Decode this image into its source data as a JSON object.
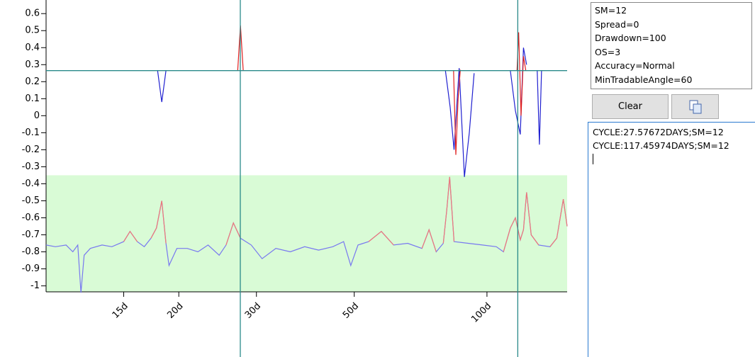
{
  "chart_data": {
    "type": "line",
    "xscale": "log",
    "xlim": [
      10,
      152
    ],
    "ylim": [
      -1.035,
      0.68
    ],
    "xticks": [
      {
        "value": 15,
        "label": "15d"
      },
      {
        "value": 20,
        "label": "20d"
      },
      {
        "value": 30,
        "label": "30d"
      },
      {
        "value": 50,
        "label": "50d"
      },
      {
        "value": 100,
        "label": "100d"
      }
    ],
    "yticks": [
      0.6,
      0.5,
      0.4,
      0.3,
      0.2,
      0.1,
      0,
      -0.1,
      -0.2,
      -0.3,
      -0.4,
      -0.5,
      -0.6,
      -0.7,
      -0.8,
      -0.9,
      -1
    ],
    "threshold": 0.265,
    "threshold_color": "#2a8a8a",
    "zone": {
      "from": -1.035,
      "to": -0.35,
      "color": "#d9fbd6"
    },
    "cycle_lines": [
      27.57672,
      117.45974
    ],
    "cycle_color": "#2a8a8a",
    "series": [
      {
        "color": "#7878f0",
        "x": [
          10.0,
          10.5,
          11.1,
          11.5,
          11.8,
          12.0,
          12.2,
          12.6,
          13.4,
          14.1,
          15.0,
          15.5,
          16.1,
          16.7,
          17.3,
          17.8,
          18.3,
          18.7,
          19.0,
          19.8,
          20.9,
          22.1,
          23.3,
          24.7,
          25.6,
          26.6,
          27.6,
          29.2,
          30.9,
          33.2,
          35.8,
          38.6,
          41.5,
          44.7,
          47.3,
          49.1,
          51.0,
          53.9,
          57.6,
          61.4,
          66.1,
          71.2,
          73.9,
          76.7,
          79.6,
          81.1,
          82.3,
          84.2,
          90.7,
          97.7,
          105,
          109,
          113,
          116,
          119,
          121,
          123,
          126,
          131,
          139,
          144,
          149,
          152
        ],
        "values": [
          -0.76,
          -0.77,
          -0.76,
          -0.8,
          -0.76,
          -1.04,
          -0.82,
          -0.78,
          -0.76,
          -0.77,
          -0.74,
          -0.68,
          -0.74,
          -0.77,
          -0.72,
          -0.66,
          -0.5,
          -0.75,
          -0.88,
          -0.78,
          -0.78,
          -0.8,
          -0.76,
          -0.82,
          -0.76,
          -0.63,
          -0.72,
          -0.76,
          -0.84,
          -0.78,
          -0.8,
          -0.77,
          -0.79,
          -0.77,
          -0.74,
          -0.88,
          -0.76,
          -0.74,
          -0.68,
          -0.76,
          -0.75,
          -0.78,
          -0.67,
          -0.8,
          -0.75,
          -0.55,
          -0.36,
          -0.74,
          -0.75,
          -0.76,
          -0.77,
          -0.8,
          -0.66,
          -0.6,
          -0.73,
          -0.67,
          -0.45,
          -0.7,
          -0.76,
          -0.77,
          -0.72,
          -0.49,
          -0.65
        ]
      },
      {
        "color": "#f07878",
        "x": [
          15.0,
          15.5,
          16.1,
          17,
          17.3,
          17.8,
          18.3,
          18.7,
          20,
          25.6,
          26.6,
          27.6,
          35,
          53.9,
          57.6,
          61.4,
          70,
          71.2,
          73.9,
          76.7,
          78,
          79.6,
          81.1,
          82.3,
          84.2,
          100,
          109,
          113,
          116,
          119,
          121,
          123,
          126,
          131,
          140,
          139,
          144,
          149,
          152
        ],
        "values": [
          -0.74,
          -0.68,
          -0.74,
          null,
          -0.72,
          -0.66,
          -0.5,
          -0.75,
          null,
          -0.76,
          -0.63,
          -0.72,
          null,
          -0.74,
          -0.68,
          -0.76,
          null,
          -0.78,
          -0.67,
          -0.8,
          null,
          -0.75,
          -0.55,
          -0.36,
          -0.74,
          null,
          -0.8,
          -0.66,
          -0.6,
          -0.73,
          -0.67,
          -0.45,
          -0.7,
          -0.76,
          null,
          -0.77,
          -0.72,
          -0.49,
          -0.65
        ]
      },
      {
        "color": "#2020d0",
        "x": [
          17.9,
          18.3,
          18.7,
          20,
          80.5,
          82.5,
          84.2,
          86.5,
          88.9,
          91.2,
          93.5,
          100,
          113,
          116,
          119,
          121,
          123,
          125,
          130,
          131.5,
          133
        ],
        "values": [
          0.265,
          0.08,
          0.265,
          null,
          0.265,
          0.05,
          -0.2,
          0.28,
          -0.36,
          -0.1,
          0.25,
          null,
          0.265,
          0.03,
          -0.11,
          0.4,
          0.3,
          null,
          0.265,
          -0.17,
          0.265
        ]
      },
      {
        "color": "#e02020",
        "x": [
          27.2,
          27.6,
          28.0,
          40,
          84.0,
          85.0,
          86.0,
          87.0,
          100,
          117,
          118,
          119.5,
          121,
          122.5
        ],
        "values": [
          0.265,
          0.53,
          0.265,
          null,
          0.265,
          -0.23,
          0.1,
          0.27,
          null,
          0.265,
          0.49,
          0.0,
          0.35,
          0.265
        ]
      }
    ]
  },
  "settings": [
    "SM=12",
    "Spread=0",
    "Drawdown=100",
    "OS=3",
    "Accuracy=Normal",
    "MinTradableAngle=60"
  ],
  "buttons": {
    "clear": "Clear"
  },
  "log": [
    "CYCLE:27.57672DAYS;SM=12",
    "CYCLE:117.45974DAYS;SM=12"
  ]
}
